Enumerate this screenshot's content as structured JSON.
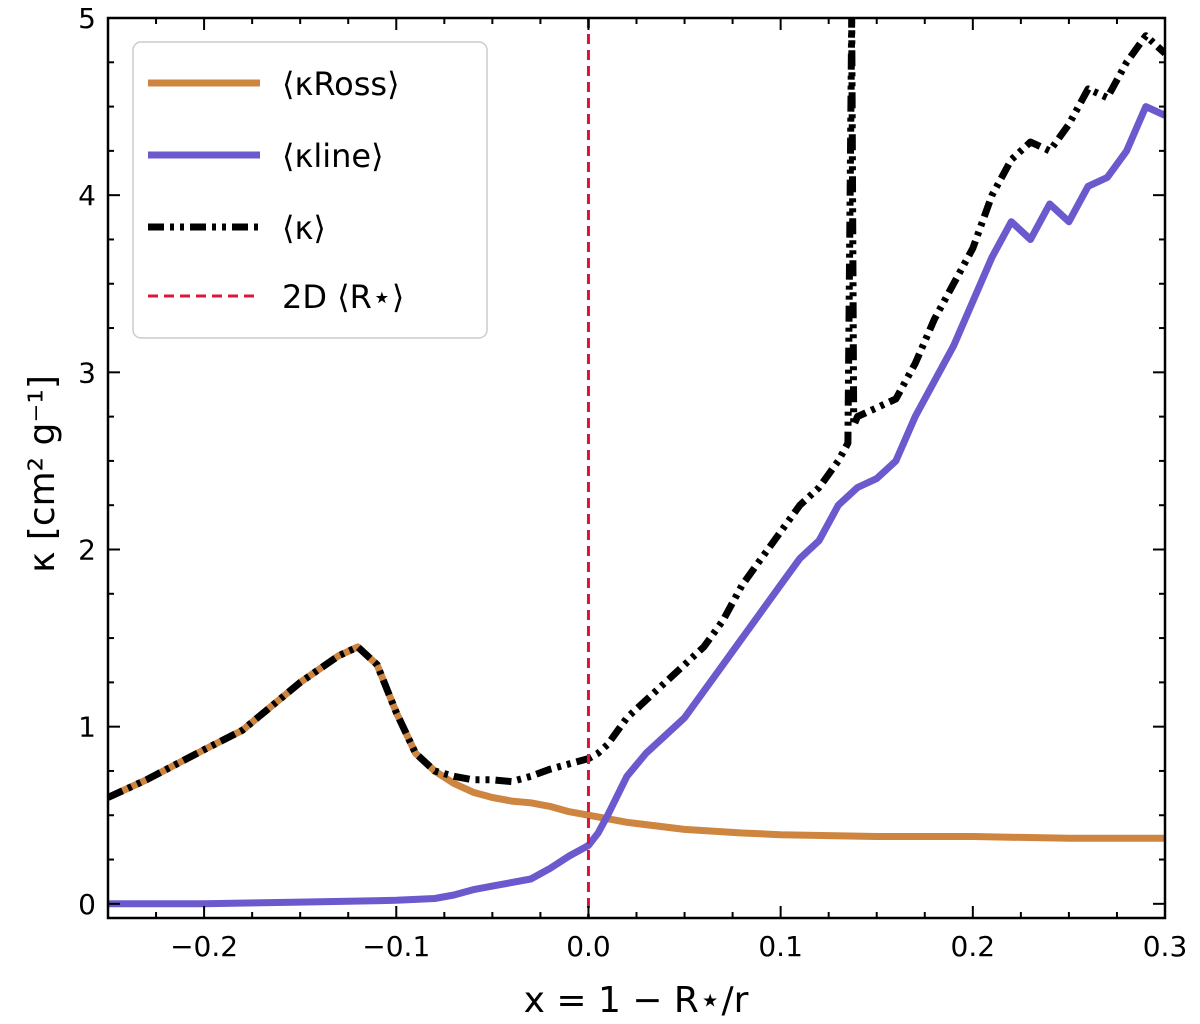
{
  "chart_data": {
    "type": "line",
    "title": "",
    "xlabel": "x = 1 − R⋆/r",
    "ylabel": "κ [cm² g⁻¹]",
    "xlim": [
      -0.25,
      0.3
    ],
    "ylim": [
      -0.08,
      5.0
    ],
    "x_ticks": [
      -0.2,
      -0.1,
      0.0,
      0.1,
      0.2,
      0.3
    ],
    "x_tick_labels": [
      "−0.2",
      "−0.1",
      "0.0",
      "0.1",
      "0.2",
      "0.3"
    ],
    "y_ticks": [
      0,
      1,
      2,
      3,
      4,
      5
    ],
    "y_tick_labels": [
      "0",
      "1",
      "2",
      "3",
      "4",
      "5"
    ],
    "legend_position": "top-left",
    "vline": {
      "name": "2D ⟨R⋆⟩",
      "x": 0.0,
      "color": "#dc143c",
      "style": "dashed"
    },
    "series": [
      {
        "name": "⟨κRoss⟩",
        "color": "#cd853f",
        "style": "solid",
        "x": [
          -0.25,
          -0.23,
          -0.2,
          -0.18,
          -0.15,
          -0.13,
          -0.12,
          -0.11,
          -0.1,
          -0.09,
          -0.08,
          -0.07,
          -0.06,
          -0.05,
          -0.04,
          -0.03,
          -0.02,
          -0.01,
          0.0,
          0.02,
          0.05,
          0.08,
          0.1,
          0.15,
          0.2,
          0.25,
          0.3
        ],
        "values": [
          0.6,
          0.7,
          0.87,
          0.98,
          1.25,
          1.4,
          1.45,
          1.35,
          1.08,
          0.85,
          0.75,
          0.68,
          0.63,
          0.6,
          0.58,
          0.57,
          0.55,
          0.52,
          0.5,
          0.46,
          0.42,
          0.4,
          0.39,
          0.38,
          0.38,
          0.37,
          0.37
        ]
      },
      {
        "name": "⟨κline⟩",
        "color": "#6a5acd",
        "style": "solid",
        "x": [
          -0.25,
          -0.2,
          -0.15,
          -0.1,
          -0.08,
          -0.07,
          -0.06,
          -0.05,
          -0.03,
          -0.02,
          -0.01,
          0.0,
          0.005,
          0.01,
          0.02,
          0.03,
          0.04,
          0.05,
          0.06,
          0.07,
          0.08,
          0.09,
          0.1,
          0.11,
          0.12,
          0.13,
          0.14,
          0.15,
          0.16,
          0.17,
          0.18,
          0.19,
          0.2,
          0.21,
          0.22,
          0.23,
          0.24,
          0.25,
          0.26,
          0.27,
          0.28,
          0.29,
          0.3
        ],
        "values": [
          0.0,
          0.0,
          0.01,
          0.02,
          0.03,
          0.05,
          0.08,
          0.1,
          0.14,
          0.2,
          0.27,
          0.33,
          0.4,
          0.5,
          0.72,
          0.85,
          0.95,
          1.05,
          1.2,
          1.35,
          1.5,
          1.65,
          1.8,
          1.95,
          2.05,
          2.25,
          2.35,
          2.4,
          2.5,
          2.75,
          2.95,
          3.15,
          3.4,
          3.65,
          3.85,
          3.75,
          3.95,
          3.85,
          4.05,
          4.1,
          4.25,
          4.5,
          4.45
        ]
      },
      {
        "name": "⟨κ⟩",
        "color": "#000000",
        "style": "dashdotdot",
        "x": [
          -0.25,
          -0.23,
          -0.2,
          -0.18,
          -0.15,
          -0.13,
          -0.12,
          -0.11,
          -0.1,
          -0.09,
          -0.08,
          -0.07,
          -0.06,
          -0.05,
          -0.04,
          -0.03,
          -0.02,
          -0.01,
          0.0,
          0.005,
          0.01,
          0.02,
          0.03,
          0.04,
          0.05,
          0.06,
          0.07,
          0.08,
          0.09,
          0.1,
          0.11,
          0.12,
          0.13,
          0.135,
          0.137,
          0.138,
          0.14,
          0.15,
          0.16,
          0.17,
          0.18,
          0.19,
          0.2,
          0.21,
          0.22,
          0.23,
          0.24,
          0.25,
          0.26,
          0.27,
          0.28,
          0.29,
          0.3
        ],
        "values": [
          0.6,
          0.7,
          0.87,
          0.98,
          1.25,
          1.4,
          1.45,
          1.35,
          1.08,
          0.85,
          0.75,
          0.72,
          0.7,
          0.7,
          0.69,
          0.72,
          0.76,
          0.79,
          0.82,
          0.85,
          0.9,
          1.05,
          1.15,
          1.25,
          1.35,
          1.45,
          1.6,
          1.8,
          1.95,
          2.1,
          2.25,
          2.35,
          2.5,
          2.6,
          5.0,
          2.7,
          2.75,
          2.8,
          2.85,
          3.05,
          3.3,
          3.5,
          3.7,
          4.0,
          4.2,
          4.3,
          4.25,
          4.4,
          4.6,
          4.55,
          4.75,
          4.9,
          4.8
        ]
      }
    ]
  }
}
